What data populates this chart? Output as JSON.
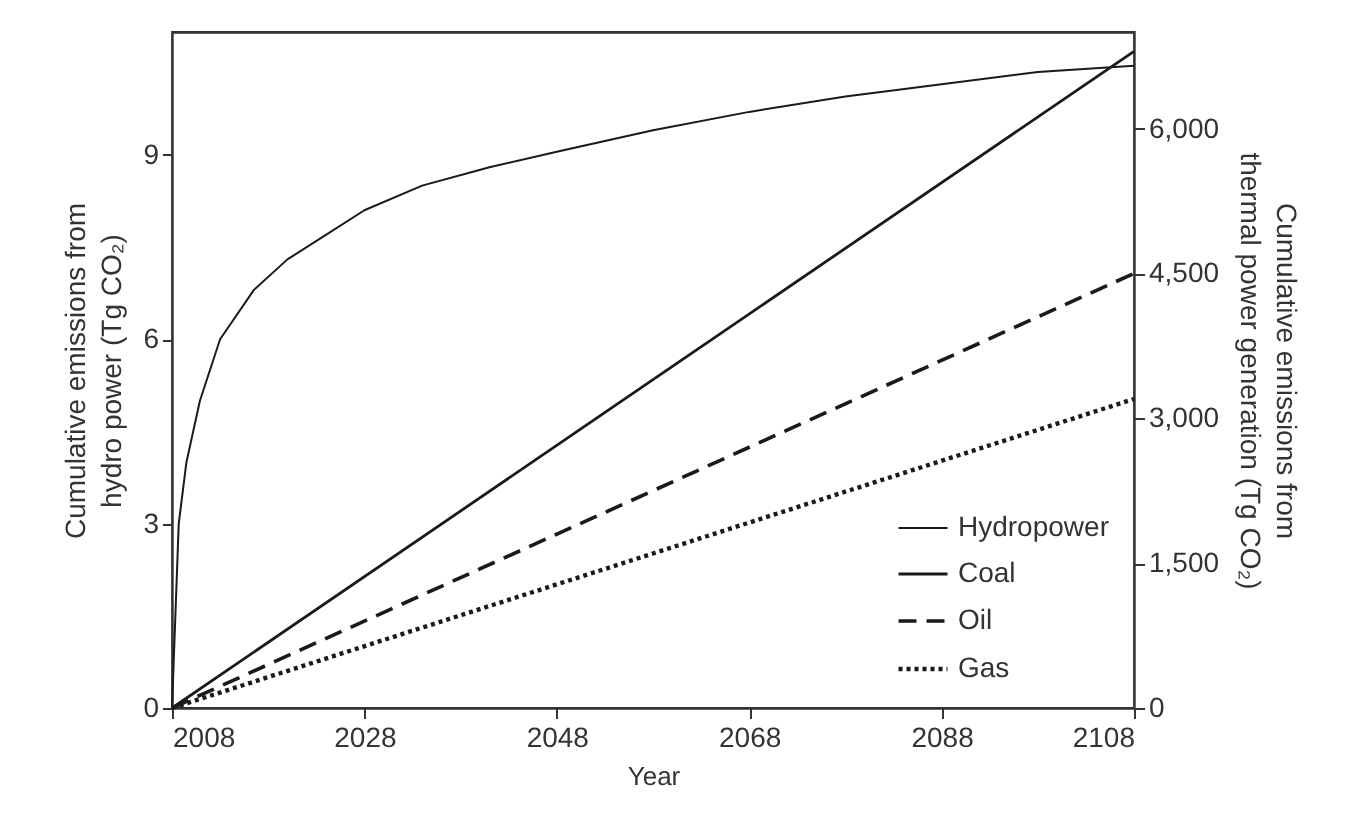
{
  "chart_data": {
    "type": "line",
    "xlabel": "Year",
    "ylabel": "Cumulative emissions from\nhydro power (Tg CO₂)",
    "y2label": "Cumulative emissions from\nthermal power generation (Tg CO₂)",
    "xlim": [
      2008,
      2108
    ],
    "xticks": [
      2008,
      2028,
      2048,
      2068,
      2088,
      2108
    ],
    "ylim": [
      0,
      11
    ],
    "yticks": [
      0,
      3,
      6,
      9
    ],
    "y2lim": [
      0,
      7000
    ],
    "y2ticks": [
      0,
      {
        "value": 1500,
        "label": "1,500"
      },
      {
        "value": 3000,
        "label": "3,000"
      },
      {
        "value": 4500,
        "label": "4,500"
      },
      {
        "value": 6000,
        "label": "6,000"
      }
    ],
    "legend": "bottom right",
    "grid": false,
    "marker": "none",
    "series": [
      {
        "name": "Hydropower",
        "color": "#1a1a1a",
        "line_style": "solid",
        "x": [
          2008,
          2008.7,
          2009.5,
          2010.9,
          2013,
          2016.5,
          2020,
          2024,
          2028,
          2034,
          2041,
          2048,
          2058,
          2068,
          2078,
          2088,
          2098,
          2108
        ],
        "values": [
          0,
          3.0,
          4.0,
          5.0,
          6.0,
          6.8,
          7.3,
          7.7,
          8.1,
          8.5,
          8.8,
          9.05,
          9.4,
          9.7,
          9.95,
          10.15,
          10.35,
          10.45
        ]
      },
      {
        "name": "Coal",
        "color": "#1a1a1a",
        "line_style": "solid",
        "axis": "y2",
        "x": [
          2008,
          2058,
          2108
        ],
        "values": [
          0,
          3400,
          6800
        ]
      },
      {
        "name": "Oil",
        "color": "#1a1a1a",
        "line_style": "dashed",
        "axis": "y2",
        "x": [
          2008,
          2058,
          2108
        ],
        "values": [
          0,
          2250,
          4500
        ]
      },
      {
        "name": "Gas",
        "color": "#1a1a1a",
        "line_style": "dotted",
        "axis": "y2",
        "x": [
          2008,
          2058,
          2108
        ],
        "values": [
          0,
          1600,
          3200
        ]
      }
    ]
  }
}
